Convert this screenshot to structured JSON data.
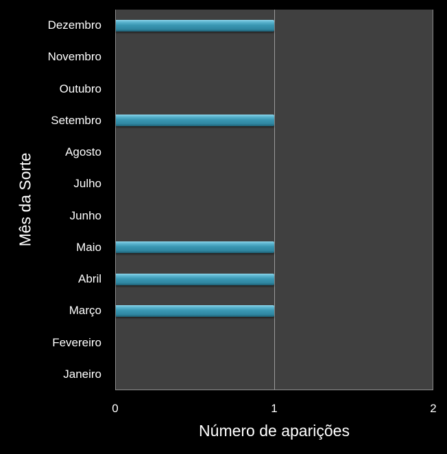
{
  "chart_data": {
    "type": "bar",
    "orientation": "horizontal",
    "title": "",
    "xlabel": "Número de aparições",
    "ylabel": "Mês da Sorte",
    "xlim": [
      0,
      2
    ],
    "x_ticks": [
      "0",
      "1",
      "2"
    ],
    "grid": {
      "vertical": true,
      "horizontal": false
    },
    "legend": null,
    "categories": [
      "Janeiro",
      "Fevereiro",
      "Março",
      "Abril",
      "Maio",
      "Junho",
      "Julho",
      "Agosto",
      "Setembro",
      "Outubro",
      "Novembro",
      "Dezembro"
    ],
    "values": [
      0,
      0,
      1,
      1,
      1,
      0,
      0,
      0,
      1,
      0,
      0,
      1
    ],
    "colors": {
      "bar": "#3a97b3",
      "bar_highlight": "#8fd6ec",
      "plot_background": "#404040",
      "background": "#000000",
      "gridline": "#9a9a9a",
      "text": "#ffffff"
    }
  }
}
